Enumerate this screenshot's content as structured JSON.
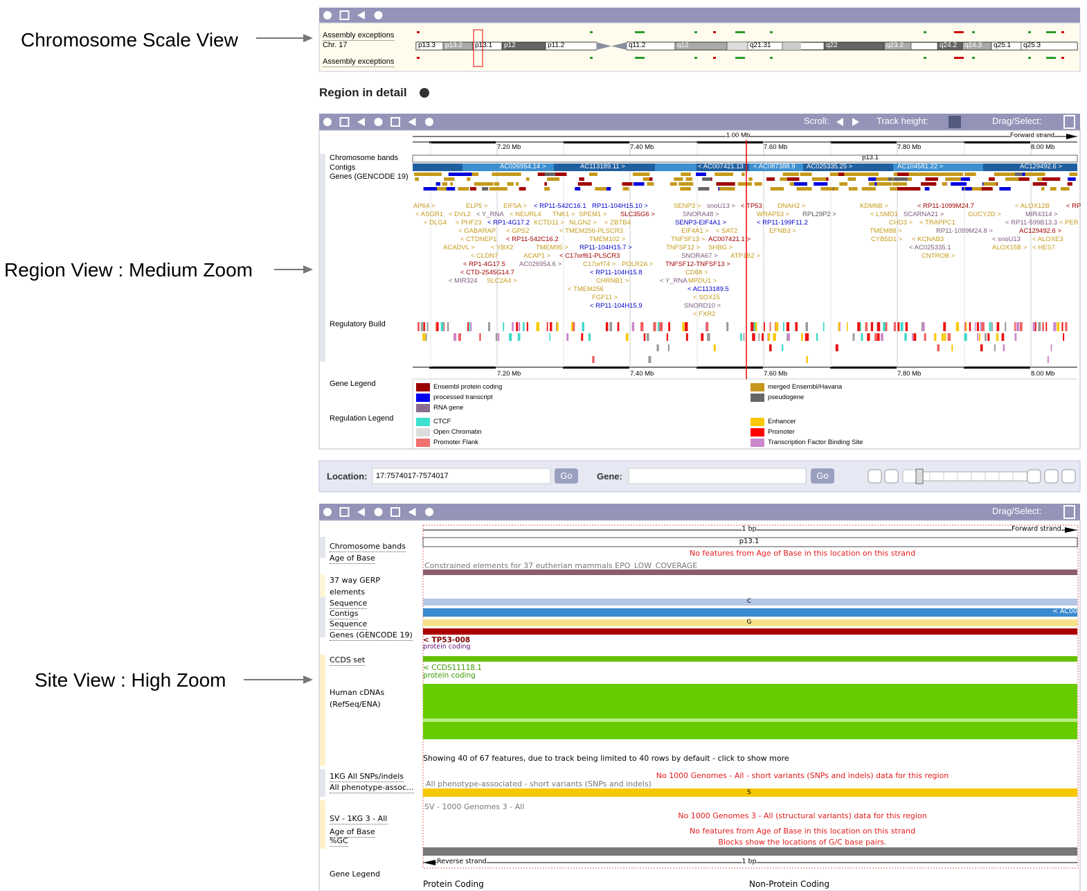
{
  "annotations": [
    "Chromosome Scale View",
    "Region View : Medium Zoom",
    "Site View : High Zoom"
  ],
  "chromosome_view": {
    "tracks": [
      "Assembly exceptions",
      "Chr. 17",
      "Assembly exceptions"
    ],
    "bands": [
      "p13.3",
      "p13.2",
      "p13.1",
      "p12",
      "p11.2",
      "q11.2",
      "q12",
      "q21.31",
      "q22",
      "q23.2",
      "q24.2",
      "q24.3",
      "q25.1",
      "q25.3"
    ]
  },
  "region_heading": "Region in detail",
  "region_view": {
    "toolbar": {
      "scroll": "Scroll:",
      "track_height": "Track height:",
      "drag_select": "Drag/Select:"
    },
    "scale": "1.00 Mb",
    "strand": "Forward strand",
    "ticks": [
      "7.20 Mb",
      "7.40 Mb",
      "7.60 Mb",
      "7.80 Mb",
      "8.00 Mb"
    ],
    "tracks": [
      "Chromosome bands",
      "Contigs",
      "Genes (GENCODE 19)",
      "Regulatory Build",
      "Gene Legend",
      "Regulation Legend"
    ],
    "band": "p13.1",
    "contigs": [
      "AC026954.14 >",
      "AC113189.11 >",
      "< AC007421.13",
      "< AC087388.9",
      "AC025335.25 >",
      "AC104581.22 >",
      "AC129492.6 >"
    ],
    "gene_label_rows": [
      [
        "AP64 >",
        "ELP5 >",
        "EIF5A >",
        "< RP11-542C16.1",
        "RP11-104H15.10 >",
        "SENP3 >",
        "snoU13 >",
        "< TP53",
        "DNAH2 >",
        "KDM6B >",
        "< RP11-1099M24.7",
        "< ALOX12B",
        "< RP"
      ],
      [
        "< ASGR1",
        "< DVL2",
        "< Y_RNA",
        "< NEURL4",
        "TNK1 >",
        "SPEM1 >",
        "SLC35G6 >",
        "SNORA48 >",
        "WRAP53 >",
        "RPL29P2 >",
        "< LSMD1",
        "SCARNA21 >",
        "GUCY2D >",
        "MIR4314 >"
      ],
      [
        "< DLG4",
        "< PHF23",
        "< RP1-4G17.2",
        "KCTD11 >",
        "NLGN2 >",
        "< ZBTB4",
        "SENP3-EIF4A1 >",
        "< RP11-199F11.2",
        "CHD3 >",
        "< TRAPPC1",
        "< RP11-599B13.3",
        "< PER"
      ],
      [
        "< GABARAP",
        "< GPS2",
        "< TMEM256-PLSCR3",
        "EIF4A1 >",
        "< SAT2",
        "EFNB3 >",
        "TMEM88 >",
        "RP11-1099M24.8 >",
        "AC129492.6 >"
      ],
      [
        "< CTDNEP1",
        "< RP11-542C16.2",
        "TMEM102 >",
        "TNFSF13 >",
        "AC007421.1 >",
        "CYB5D1 >",
        "< KCNAB3",
        "< snoU13",
        "< ALOXE3"
      ],
      [
        "ACADVL >",
        "< YBX2",
        "TMEM95 >",
        "RP11-104H15.7 >",
        "TNFSF12 >",
        "SHBG >",
        "< AC025335.1",
        "ALOX15B >",
        "< HES7"
      ],
      [
        "< CLDN7",
        "ACAP1 >",
        "< C17orf61-PLSCR3",
        "SNORA67 >",
        "ATP1B2 >",
        "CNTROB >"
      ],
      [
        "< RP1-4G17.5",
        "AC026954.6 >",
        "C17orf74 >",
        "POLR2A >",
        "TNFSF12-TNFSF13 >"
      ],
      [
        "< CTD-2545G14.7",
        "< RP11-104H15.8",
        "CD68 >"
      ],
      [
        "< MIR324",
        "SLC2A4 >",
        "CHRNB1 >",
        "< Y_RNA",
        "MPDU1 >"
      ],
      [
        "< TMEM256",
        "< AC113189.5"
      ],
      [
        "FGF11 >",
        "< SOX15"
      ],
      [
        "< RP11-104H15.9",
        "SNORD10 >"
      ],
      [
        "< FXR2"
      ]
    ],
    "gene_legend": [
      "Ensembl protein coding",
      "processed transcript",
      "RNA gene",
      "merged Ensembl/Havana",
      "pseudogene"
    ],
    "regulation_legend": [
      "CTCF",
      "Open Chromatin",
      "Promoter Flank",
      "Enhancer",
      "Promoter",
      "Transcription Factor Binding Site"
    ]
  },
  "navigation": {
    "location_label": "Location:",
    "location_value": "17:7574017-7574017",
    "gene_label": "Gene:",
    "go_buttons": [
      "Go",
      "Go"
    ]
  },
  "site_view": {
    "toolbar": {
      "drag_select": "Drag/Select:"
    },
    "scale": "1 bp",
    "strand": "Forward strand",
    "band": "p13.1",
    "tracks": [
      "Chromosome bands",
      "Age of Base",
      "37 way GERP elements",
      "Sequence",
      "Contigs",
      "Sequence",
      "Genes (GENCODE 19)",
      "CCDS set",
      "Human cDNAs (RefSeq/ENA)",
      "1KG All SNPs/indels",
      "All phenotype-assoc...",
      "SV - 1KG 3 - All",
      "Age of Base",
      "%GC"
    ],
    "messages": {
      "age_of_base": "No features from Age of Base in this location on this strand",
      "constrained": "Constrained elements for 37 eutherian mammals EPO_LOW_COVERAGE",
      "sequence_top": "C",
      "contig": "< AC00",
      "sequence_bottom": "G",
      "gene": "< TP53-008",
      "gene_biotype": "protein coding",
      "ccds": "< CCDS11118.1",
      "ccds_biotype": "protein coding",
      "cdna_limit": "Showing 40 of 67 features, due to track being limited to 40 rows by default - click to show more",
      "kg_none": "No 1000 Genomes - All - short variants (SNPs and indels) data for this region",
      "phenotype": "All phenotype-associated - short variants (SNPs and indels)",
      "phenotype_base": "S",
      "sv": "SV - 1000 Genomes 3 - All",
      "sv_none": "No 1000 Genomes 3 - All (structural variants) data for this region",
      "age_of_base_2": "No features from Age of Base in this location on this strand",
      "gc": "Blocks show the locations of G/C base pairs."
    },
    "reverse_strand": "Reverse strand",
    "scale_bottom": "1 bp",
    "legend_title": "Gene Legend",
    "legend": [
      "Protein Coding",
      "Non-Protein Coding"
    ]
  }
}
